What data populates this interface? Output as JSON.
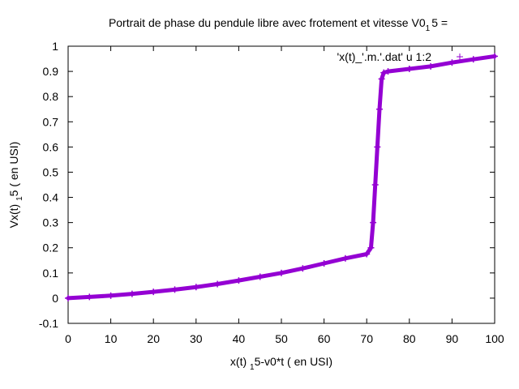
{
  "chart_data": {
    "type": "scatter",
    "title": {
      "main": "Portrait de phase du pendule libre avec frotement et vitesse V0",
      "sub": "1",
      "tail": "5 ="
    },
    "xlabel": {
      "main": "x(t) ",
      "sub": "1",
      "tail": "5-v0*t ( en USI)"
    },
    "ylabel": {
      "main": "Vx(t) ",
      "sub": "1",
      "tail": "5 ( en USI)"
    },
    "xlim": [
      0,
      100
    ],
    "ylim": [
      -0.1,
      1
    ],
    "xticks": [
      "0",
      "10",
      "20",
      "30",
      "40",
      "50",
      "60",
      "70",
      "80",
      "90",
      "100"
    ],
    "yticks": [
      "-0.1",
      "0",
      "0.1",
      "0.2",
      "0.3",
      "0.4",
      "0.5",
      "0.6",
      "0.7",
      "0.8",
      "0.9",
      "1"
    ],
    "grid": false,
    "legend_position": "top-right",
    "series": [
      {
        "name": "'x(t)_'.m.'.dat' u 1:2",
        "color": "#9400d3",
        "marker": "plus",
        "x": [
          0,
          5,
          10,
          15,
          20,
          25,
          30,
          35,
          40,
          45,
          50,
          55,
          60,
          65,
          70,
          71,
          71.5,
          72,
          72.5,
          73,
          73.5,
          74,
          75,
          80,
          85,
          90,
          95,
          100
        ],
        "y": [
          0.0,
          0.005,
          0.01,
          0.017,
          0.025,
          0.034,
          0.044,
          0.056,
          0.07,
          0.085,
          0.1,
          0.118,
          0.138,
          0.158,
          0.175,
          0.2,
          0.3,
          0.45,
          0.6,
          0.75,
          0.87,
          0.895,
          0.9,
          0.91,
          0.92,
          0.935,
          0.948,
          0.96
        ]
      }
    ]
  }
}
